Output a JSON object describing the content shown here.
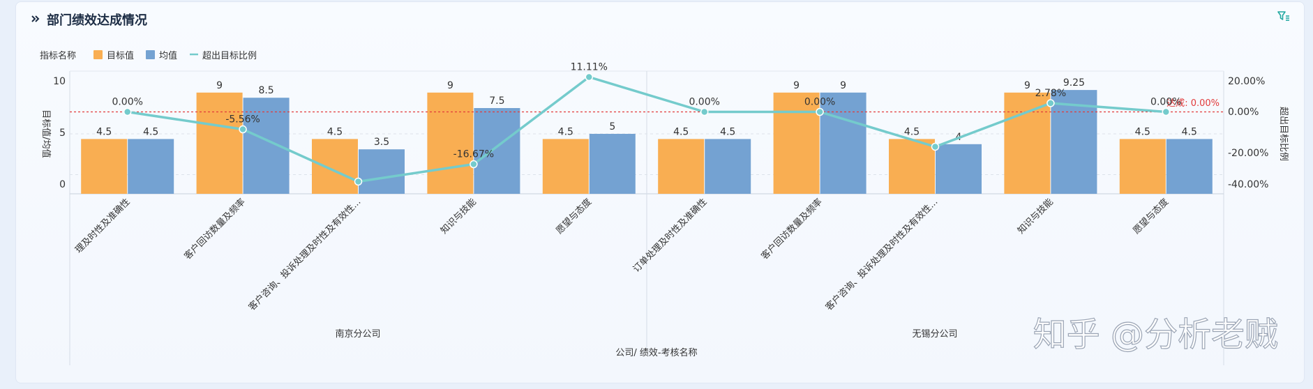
{
  "panel": {
    "title": "部门绩效达成情况"
  },
  "colors": {
    "target": "#f9ae52",
    "mean": "#74a2d2",
    "ratio": "#74cbcc",
    "baseline": "#e23a3a"
  },
  "icons": {
    "title": "chevron-right-icon",
    "filter": "filter-icon"
  },
  "watermark": "知乎 @分析老贼",
  "chart_data": {
    "type": "bar",
    "legend": {
      "title": "指标名称",
      "items": [
        "目标值",
        "均值",
        "超出目标比例"
      ],
      "position": "top-left"
    },
    "ylabel": "目标值/均值",
    "ylabel_right": "超出目标比例",
    "xlabel": "公司/ 绩效-考核名称",
    "ylim": [
      -1,
      10.5
    ],
    "y_ticks": [
      "10",
      "5",
      "0"
    ],
    "y2lim": [
      -0.4,
      0.2
    ],
    "y2_ticks": [
      "20.00%",
      "0.00%",
      "-20.00%",
      "-40.00%"
    ],
    "baseline_label": "达成: 0.00%",
    "groups": [
      {
        "name": "南京分公司",
        "categories": [
          "理及时性及准确性",
          "客户回访数量及频率",
          "客户咨询、投诉处理及时性及有效性...",
          "知识与技能",
          "愿望与态度"
        ]
      },
      {
        "name": "无锡分公司",
        "categories": [
          "订单处理及时性及准确性",
          "客户回访数量及频率",
          "客户咨询、投诉处理及时性及有效性...",
          "知识与技能",
          "愿望与态度"
        ]
      }
    ],
    "series": [
      {
        "name": "目标值",
        "type": "bar",
        "axis": "left",
        "values": [
          4.5,
          9,
          4.5,
          9,
          4.5,
          4.5,
          9,
          4.5,
          9,
          4.5
        ]
      },
      {
        "name": "均值",
        "type": "bar",
        "axis": "left",
        "values": [
          4.5,
          8.5,
          3.5,
          7.5,
          5,
          4.5,
          9,
          4,
          9.25,
          4.5
        ]
      },
      {
        "name": "超出目标比例",
        "type": "line",
        "axis": "right",
        "values": [
          0,
          -0.0556,
          -0.2222,
          -0.1667,
          0.1111,
          0,
          0,
          -0.1111,
          0.0278,
          0
        ]
      }
    ],
    "value_labels": {
      "target": [
        "4.5",
        "9",
        "4.5",
        "9",
        "4.5",
        "4.5",
        "9",
        "4.5",
        "9",
        "4.5"
      ],
      "mean": [
        "4.5",
        "8.5",
        "3.5",
        "7.5",
        "5",
        "4.5",
        "9",
        "4",
        "9.25",
        "4.5"
      ],
      "ratio": [
        "0.00%",
        "-5.56%",
        "",
        "-16.67%",
        "11.11%",
        "0.00%",
        "0.00%",
        "",
        "2.78%",
        "0.00%"
      ]
    },
    "grid": true
  }
}
